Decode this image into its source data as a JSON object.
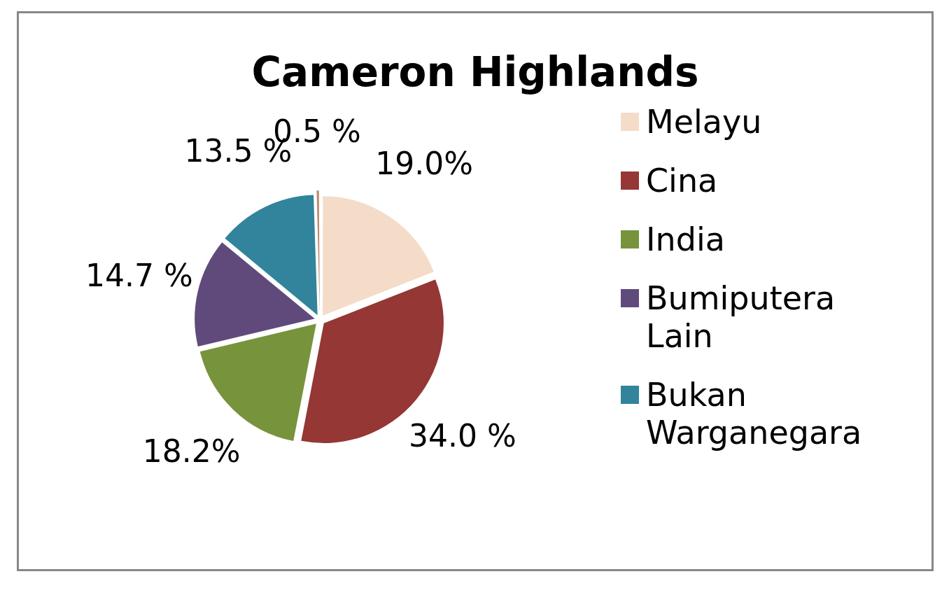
{
  "chart_data": {
    "type": "pie",
    "title": "Cameron Highlands",
    "categories": [
      "Melayu",
      "Cina",
      "India",
      "Bumiputera Lain",
      "Bukan Warganegara",
      null
    ],
    "values": [
      19.0,
      34.0,
      18.2,
      14.7,
      13.5,
      0.5
    ],
    "colors": [
      "#f4dcc8",
      "#953735",
      "#77933c",
      "#604a7b",
      "#31849b",
      "#b98a72"
    ],
    "value_labels": [
      "19.0%",
      "34.0 %",
      "18.2%",
      "14.7 %",
      "13.5 %",
      "0.5 %"
    ],
    "legend": "right"
  }
}
